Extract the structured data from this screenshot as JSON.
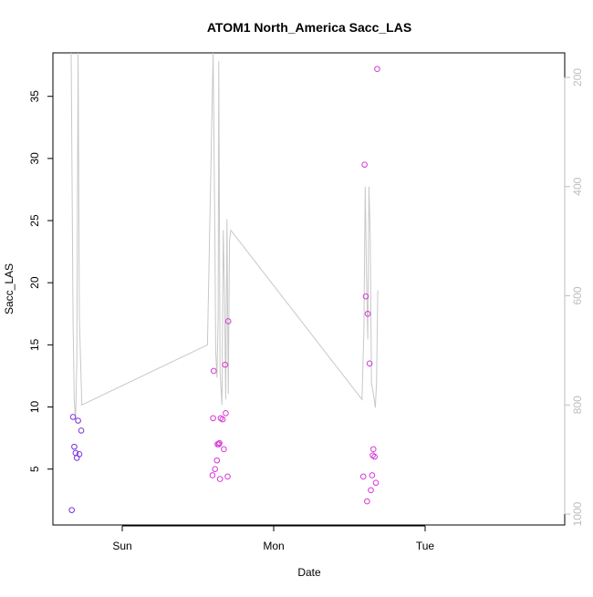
{
  "chart_data": {
    "type": "scatter",
    "title": "ATOM1 North_America Sacc_LAS",
    "xlabel": "Date",
    "ylabel": "Sacc_LAS",
    "x_ticks": [
      "Sun",
      "Mon",
      "Tue"
    ],
    "ylim": [
      0.5,
      38.5
    ],
    "y_ticks": [
      5,
      10,
      15,
      20,
      25,
      30,
      35
    ],
    "y2lim": [
      1020,
      155
    ],
    "y2_ticks": [
      200,
      400,
      600,
      800,
      1000
    ],
    "xlim_hours": [
      -14.0,
      37.3
    ],
    "x_tick_hours": [
      0,
      24,
      48
    ],
    "colors": {
      "line": "#c8c8c8",
      "points_day1": "#7b2fe0",
      "points_later": "#d636d6",
      "axis": "#000000",
      "axis_right": "#bdbdbd"
    },
    "points_day1": [
      [
        -8.0,
        1.7
      ],
      [
        -7.8,
        9.2
      ],
      [
        -7.6,
        6.8
      ],
      [
        -7.4,
        6.3
      ],
      [
        -7.2,
        5.9
      ],
      [
        -7.0,
        8.9
      ],
      [
        -6.8,
        6.2
      ],
      [
        -6.5,
        8.1
      ]
    ],
    "points_later": [
      [
        14.3,
        4.5
      ],
      [
        14.4,
        9.1
      ],
      [
        14.5,
        12.9
      ],
      [
        14.7,
        5.0
      ],
      [
        15.0,
        5.7
      ],
      [
        15.1,
        7.0
      ],
      [
        15.3,
        7.0
      ],
      [
        15.4,
        7.1
      ],
      [
        15.5,
        4.2
      ],
      [
        15.6,
        9.1
      ],
      [
        15.9,
        9.0
      ],
      [
        16.1,
        6.6
      ],
      [
        16.3,
        13.4
      ],
      [
        16.4,
        9.5
      ],
      [
        16.7,
        4.4
      ],
      [
        16.8,
        16.9
      ],
      [
        38.2,
        4.4
      ],
      [
        38.4,
        29.5
      ],
      [
        38.6,
        18.9
      ],
      [
        38.8,
        2.4
      ],
      [
        38.9,
        17.5
      ],
      [
        39.2,
        13.5
      ],
      [
        39.4,
        3.3
      ],
      [
        39.6,
        4.5
      ],
      [
        39.7,
        6.1
      ],
      [
        39.8,
        6.6
      ],
      [
        40.0,
        6.0
      ],
      [
        40.2,
        3.9
      ],
      [
        40.4,
        37.2
      ]
    ],
    "line_series": [
      [
        -8.1,
        155
      ],
      [
        -7.8,
        650
      ],
      [
        -7.6,
        790
      ],
      [
        -7.4,
        830
      ],
      [
        -7.2,
        720
      ],
      [
        -7.0,
        155
      ],
      [
        -6.8,
        640
      ],
      [
        -6.4,
        800
      ],
      [
        13.5,
        690
      ],
      [
        14.4,
        155
      ],
      [
        14.7,
        520
      ],
      [
        14.8,
        700
      ],
      [
        15.0,
        750
      ],
      [
        15.2,
        640
      ],
      [
        15.3,
        170
      ],
      [
        15.5,
        740
      ],
      [
        15.8,
        800
      ],
      [
        16.0,
        480
      ],
      [
        16.2,
        600
      ],
      [
        16.4,
        790
      ],
      [
        16.6,
        460
      ],
      [
        16.8,
        780
      ],
      [
        17.0,
        500
      ],
      [
        17.2,
        480
      ],
      [
        38.0,
        790
      ],
      [
        38.3,
        660
      ],
      [
        38.5,
        400
      ],
      [
        38.7,
        560
      ],
      [
        38.9,
        680
      ],
      [
        39.1,
        400
      ],
      [
        39.3,
        490
      ],
      [
        39.5,
        760
      ],
      [
        39.8,
        780
      ],
      [
        40.1,
        805
      ],
      [
        40.3,
        760
      ],
      [
        40.5,
        590
      ]
    ]
  }
}
